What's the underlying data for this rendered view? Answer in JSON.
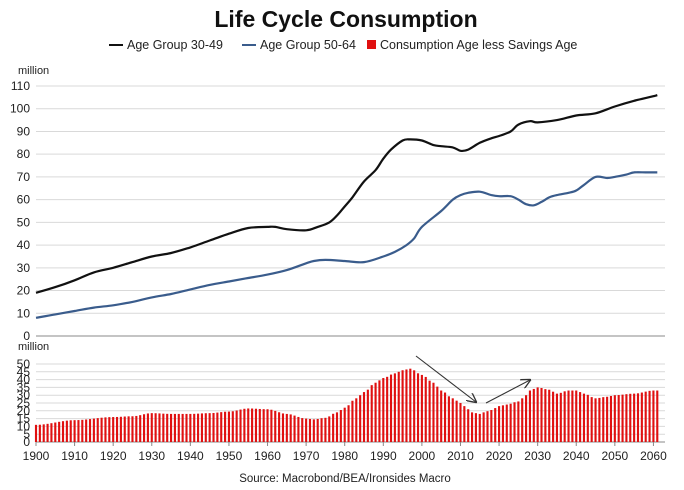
{
  "chart_data": {
    "type": "line",
    "title": "Life Cycle Consumption",
    "source": "Source: Macrobond/BEA/Ironsides Macro",
    "legend": [
      {
        "name": "Age Group 30-49",
        "color": "#111111",
        "marker": "line"
      },
      {
        "name": "Age Group 50-64",
        "color": "#3a5c8c",
        "marker": "line"
      },
      {
        "name": "Consumption Age less Savings Age",
        "color": "#e01010",
        "marker": "square"
      }
    ],
    "x_ticks": [
      "1900",
      "1910",
      "1920",
      "1930",
      "1940",
      "1950",
      "1960",
      "1970",
      "1980",
      "1990",
      "2000",
      "2010",
      "2020",
      "2030",
      "2040",
      "2050",
      "2060"
    ],
    "top_panel": {
      "ylabel": "million",
      "ylim": [
        0,
        110
      ],
      "y_ticks": [
        "0",
        "10",
        "20",
        "30",
        "40",
        "50",
        "60",
        "70",
        "80",
        "90",
        "100",
        "110"
      ],
      "series": [
        {
          "name": "Age Group 30-49",
          "color": "#111111",
          "x": [
            1900,
            1905,
            1910,
            1915,
            1920,
            1925,
            1930,
            1935,
            1940,
            1945,
            1950,
            1955,
            1960,
            1962,
            1965,
            1970,
            1973,
            1976,
            1978,
            1980,
            1982,
            1985,
            1988,
            1990,
            1992,
            1995,
            1997,
            2000,
            2003,
            2005,
            2008,
            2010,
            2012,
            2015,
            2018,
            2020,
            2023,
            2025,
            2028,
            2030,
            2035,
            2040,
            2045,
            2050,
            2055,
            2060,
            2061
          ],
          "y": [
            19,
            21.5,
            24.5,
            28,
            30,
            32.5,
            35,
            36.5,
            39,
            42,
            45,
            47.5,
            48,
            48,
            47,
            46.5,
            48,
            50,
            53,
            57,
            61,
            68,
            73,
            78,
            82,
            86,
            86.5,
            86,
            84,
            83.5,
            83,
            81.5,
            82,
            85,
            87,
            88,
            90,
            93,
            94.5,
            94,
            95,
            97,
            98,
            101,
            103.5,
            105.5,
            106
          ]
        },
        {
          "name": "Age Group 50-64",
          "color": "#3a5c8c",
          "x": [
            1900,
            1905,
            1910,
            1915,
            1920,
            1925,
            1930,
            1935,
            1940,
            1945,
            1950,
            1955,
            1960,
            1965,
            1970,
            1972,
            1975,
            1980,
            1985,
            1990,
            1993,
            1996,
            1998,
            2000,
            2005,
            2008,
            2010,
            2012,
            2015,
            2018,
            2020,
            2023,
            2025,
            2027,
            2029,
            2031,
            2033,
            2035,
            2038,
            2040,
            2042,
            2045,
            2048,
            2050,
            2053,
            2055,
            2058,
            2060,
            2061
          ],
          "y": [
            8,
            9.5,
            11,
            12.5,
            13.5,
            15,
            17,
            18.5,
            20.5,
            22.5,
            24,
            25.5,
            27,
            29,
            32,
            33,
            33.5,
            33,
            32.5,
            35,
            37,
            40,
            43,
            48,
            55,
            60,
            62,
            63,
            63.5,
            62,
            61.5,
            61.5,
            60,
            58,
            57.5,
            59,
            61,
            62,
            63,
            64,
            66.5,
            70,
            69.5,
            70,
            71,
            72,
            72,
            72,
            72
          ]
        }
      ]
    },
    "bottom_panel": {
      "type": "bar",
      "ylabel": "million",
      "ylim": [
        0,
        50
      ],
      "y_ticks": [
        "0",
        "5",
        "10",
        "15",
        "20",
        "25",
        "30",
        "35",
        "40",
        "45",
        "50"
      ],
      "series": [
        {
          "name": "Consumption Age less Savings Age",
          "color": "#e01010",
          "x_start": 1900,
          "x_end": 2061,
          "knots_x": [
            1900,
            1910,
            1920,
            1925,
            1930,
            1935,
            1940,
            1945,
            1950,
            1955,
            1960,
            1965,
            1970,
            1972,
            1975,
            1978,
            1980,
            1983,
            1985,
            1988,
            1990,
            1993,
            1995,
            1997,
            2000,
            2003,
            2005,
            2008,
            2010,
            2012,
            2013,
            2015,
            2016,
            2018,
            2020,
            2022,
            2025,
            2027,
            2028,
            2030,
            2033,
            2035,
            2038,
            2040,
            2042,
            2045,
            2048,
            2050,
            2055,
            2060,
            2061
          ],
          "knots_y": [
            11,
            14,
            16,
            16.5,
            18.5,
            18,
            18,
            18.5,
            19.5,
            21.5,
            21,
            18,
            15,
            14.5,
            15.5,
            19,
            22,
            28,
            32,
            38,
            41,
            44,
            46,
            47,
            43,
            38,
            33,
            28,
            25,
            21,
            19,
            18,
            19,
            20.5,
            23,
            24,
            26,
            30,
            33,
            35,
            33.5,
            31,
            33,
            33,
            31,
            28,
            29,
            30,
            31,
            33,
            33
          ]
        }
      ]
    }
  }
}
